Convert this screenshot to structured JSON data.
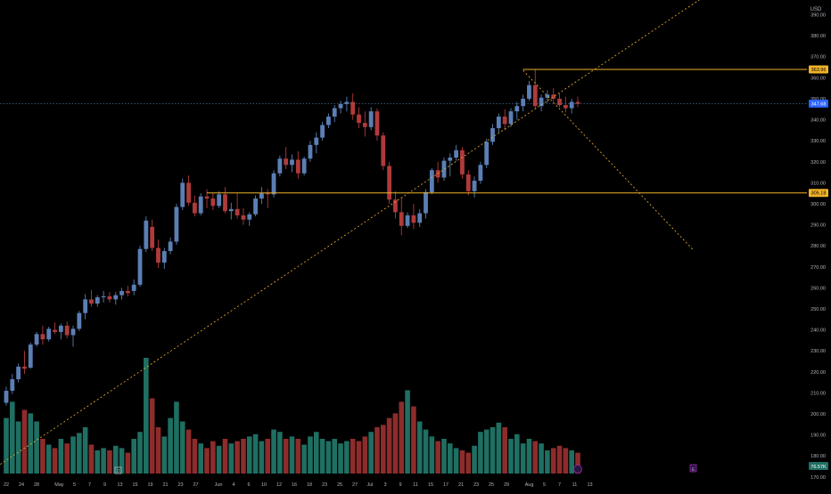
{
  "chart_data": {
    "type": "candlestick",
    "currency": "USD",
    "y_range": [
      164,
      397
    ],
    "y_ticks": [
      170,
      180,
      190,
      200,
      210,
      220,
      230,
      240,
      250,
      260,
      270,
      280,
      290,
      300,
      310,
      320,
      330,
      340,
      350,
      360,
      370,
      380,
      390
    ],
    "x_ticks": [
      {
        "label": "22",
        "i": 0
      },
      {
        "label": "24",
        "i": 2
      },
      {
        "label": "28",
        "i": 4
      },
      {
        "label": "May",
        "i": 7
      },
      {
        "label": "5",
        "i": 9
      },
      {
        "label": "7",
        "i": 11
      },
      {
        "label": "9",
        "i": 13
      },
      {
        "label": "13",
        "i": 15
      },
      {
        "label": "15",
        "i": 17
      },
      {
        "label": "19",
        "i": 19
      },
      {
        "label": "21",
        "i": 21
      },
      {
        "label": "23",
        "i": 23
      },
      {
        "label": "27",
        "i": 25
      },
      {
        "label": "Jun",
        "i": 28
      },
      {
        "label": "4",
        "i": 30
      },
      {
        "label": "6",
        "i": 32
      },
      {
        "label": "10",
        "i": 34
      },
      {
        "label": "12",
        "i": 36
      },
      {
        "label": "16",
        "i": 38
      },
      {
        "label": "18",
        "i": 40
      },
      {
        "label": "23",
        "i": 42
      },
      {
        "label": "25",
        "i": 44
      },
      {
        "label": "27",
        "i": 46
      },
      {
        "label": "Jul",
        "i": 48
      },
      {
        "label": "3",
        "i": 50
      },
      {
        "label": "9",
        "i": 52
      },
      {
        "label": "11",
        "i": 54
      },
      {
        "label": "15",
        "i": 56
      },
      {
        "label": "17",
        "i": 58
      },
      {
        "label": "21",
        "i": 60
      },
      {
        "label": "23",
        "i": 62
      },
      {
        "label": "25",
        "i": 64
      },
      {
        "label": "29",
        "i": 66
      },
      {
        "label": "Aug",
        "i": 69
      },
      {
        "label": "5",
        "i": 71
      },
      {
        "label": "7",
        "i": 73
      },
      {
        "label": "11",
        "i": 75
      },
      {
        "label": "13",
        "i": 77
      }
    ],
    "candles": [
      {
        "o": 205.3,
        "h": 213.0,
        "l": 204.0,
        "c": 211.0,
        "v": 0.48
      },
      {
        "o": 211.0,
        "h": 219.0,
        "l": 209.5,
        "c": 216.5,
        "v": 0.62
      },
      {
        "o": 216.5,
        "h": 224.0,
        "l": 215.0,
        "c": 222.5,
        "v": 0.45
      },
      {
        "o": 222.5,
        "h": 230.0,
        "l": 219.0,
        "c": 221.5,
        "v": 0.55
      },
      {
        "o": 222.0,
        "h": 234.0,
        "l": 221.5,
        "c": 233.0,
        "v": 0.52
      },
      {
        "o": 233.0,
        "h": 239.0,
        "l": 232.0,
        "c": 238.0,
        "v": 0.45
      },
      {
        "o": 238.0,
        "h": 242.0,
        "l": 233.0,
        "c": 235.5,
        "v": 0.3
      },
      {
        "o": 235.5,
        "h": 241.5,
        "l": 234.5,
        "c": 240.5,
        "v": 0.25
      },
      {
        "o": 240.0,
        "h": 243.5,
        "l": 238.0,
        "c": 239.0,
        "v": 0.22
      },
      {
        "o": 239.0,
        "h": 243.0,
        "l": 235.5,
        "c": 242.0,
        "v": 0.3
      },
      {
        "o": 242.0,
        "h": 244.0,
        "l": 236.0,
        "c": 237.5,
        "v": 0.26
      },
      {
        "o": 237.5,
        "h": 242.0,
        "l": 232.0,
        "c": 240.5,
        "v": 0.32
      },
      {
        "o": 240.5,
        "h": 249.0,
        "l": 239.5,
        "c": 248.0,
        "v": 0.35
      },
      {
        "o": 248.0,
        "h": 257.0,
        "l": 245.0,
        "c": 254.5,
        "v": 0.4
      },
      {
        "o": 254.5,
        "h": 259.0,
        "l": 251.0,
        "c": 252.5,
        "v": 0.25
      },
      {
        "o": 252.5,
        "h": 256.5,
        "l": 251.0,
        "c": 255.5,
        "v": 0.2
      },
      {
        "o": 255.5,
        "h": 258.5,
        "l": 253.0,
        "c": 256.0,
        "v": 0.22
      },
      {
        "o": 256.0,
        "h": 258.0,
        "l": 253.0,
        "c": 254.5,
        "v": 0.2
      },
      {
        "o": 254.5,
        "h": 258.0,
        "l": 252.0,
        "c": 256.5,
        "v": 0.24
      },
      {
        "o": 256.5,
        "h": 260.0,
        "l": 254.5,
        "c": 258.5,
        "v": 0.22
      },
      {
        "o": 258.5,
        "h": 261.0,
        "l": 256.0,
        "c": 257.5,
        "v": 0.18
      },
      {
        "o": 258.5,
        "h": 264.0,
        "l": 256.5,
        "c": 261.5,
        "v": 0.3
      },
      {
        "o": 261.5,
        "h": 280.0,
        "l": 260.5,
        "c": 278.5,
        "v": 0.36
      },
      {
        "o": 278.5,
        "h": 294.0,
        "l": 277.0,
        "c": 292.0,
        "v": 1.0
      },
      {
        "o": 289.0,
        "h": 292.5,
        "l": 277.5,
        "c": 279.0,
        "v": 0.65
      },
      {
        "o": 279.0,
        "h": 283.0,
        "l": 269.5,
        "c": 272.0,
        "v": 0.4
      },
      {
        "o": 272.0,
        "h": 279.0,
        "l": 269.0,
        "c": 277.5,
        "v": 0.32
      },
      {
        "o": 277.5,
        "h": 284.0,
        "l": 276.0,
        "c": 282.0,
        "v": 0.48
      },
      {
        "o": 282.0,
        "h": 300.0,
        "l": 280.5,
        "c": 298.5,
        "v": 0.62
      },
      {
        "o": 298.5,
        "h": 312.0,
        "l": 297.0,
        "c": 310.0,
        "v": 0.45
      },
      {
        "o": 310.0,
        "h": 313.5,
        "l": 299.0,
        "c": 300.5,
        "v": 0.38
      },
      {
        "o": 300.5,
        "h": 304.0,
        "l": 294.0,
        "c": 295.5,
        "v": 0.3
      },
      {
        "o": 295.5,
        "h": 305.0,
        "l": 294.5,
        "c": 303.5,
        "v": 0.26
      },
      {
        "o": 303.5,
        "h": 307.0,
        "l": 298.0,
        "c": 302.5,
        "v": 0.22
      },
      {
        "o": 302.5,
        "h": 305.0,
        "l": 297.0,
        "c": 299.0,
        "v": 0.28
      },
      {
        "o": 299.0,
        "h": 306.0,
        "l": 298.0,
        "c": 304.5,
        "v": 0.24
      },
      {
        "o": 304.5,
        "h": 308.0,
        "l": 295.5,
        "c": 296.5,
        "v": 0.3
      },
      {
        "o": 296.5,
        "h": 300.5,
        "l": 292.5,
        "c": 297.5,
        "v": 0.26
      },
      {
        "o": 297.5,
        "h": 305.0,
        "l": 293.0,
        "c": 294.5,
        "v": 0.28
      },
      {
        "o": 294.5,
        "h": 298.0,
        "l": 290.0,
        "c": 292.5,
        "v": 0.3
      },
      {
        "o": 292.5,
        "h": 296.0,
        "l": 289.5,
        "c": 295.0,
        "v": 0.32
      },
      {
        "o": 295.0,
        "h": 304.0,
        "l": 294.0,
        "c": 302.5,
        "v": 0.34
      },
      {
        "o": 302.5,
        "h": 308.0,
        "l": 300.0,
        "c": 305.0,
        "v": 0.28
      },
      {
        "o": 305.0,
        "h": 307.0,
        "l": 298.0,
        "c": 304.5,
        "v": 0.3
      },
      {
        "o": 304.5,
        "h": 316.0,
        "l": 303.0,
        "c": 314.5,
        "v": 0.38
      },
      {
        "o": 314.5,
        "h": 323.0,
        "l": 313.0,
        "c": 321.5,
        "v": 0.36
      },
      {
        "o": 321.5,
        "h": 327.0,
        "l": 316.5,
        "c": 318.5,
        "v": 0.3
      },
      {
        "o": 318.5,
        "h": 323.5,
        "l": 315.0,
        "c": 321.0,
        "v": 0.32
      },
      {
        "o": 321.0,
        "h": 325.0,
        "l": 312.0,
        "c": 314.5,
        "v": 0.3
      },
      {
        "o": 314.5,
        "h": 322.5,
        "l": 313.5,
        "c": 321.5,
        "v": 0.25
      },
      {
        "o": 321.5,
        "h": 330.0,
        "l": 320.0,
        "c": 328.0,
        "v": 0.32
      },
      {
        "o": 328.0,
        "h": 334.0,
        "l": 324.0,
        "c": 331.5,
        "v": 0.36
      },
      {
        "o": 331.5,
        "h": 339.0,
        "l": 330.0,
        "c": 337.5,
        "v": 0.3
      },
      {
        "o": 337.5,
        "h": 343.0,
        "l": 336.0,
        "c": 341.5,
        "v": 0.28
      },
      {
        "o": 341.5,
        "h": 347.0,
        "l": 339.0,
        "c": 345.5,
        "v": 0.3
      },
      {
        "o": 345.5,
        "h": 349.0,
        "l": 343.0,
        "c": 347.5,
        "v": 0.26
      },
      {
        "o": 347.5,
        "h": 351.0,
        "l": 344.0,
        "c": 348.5,
        "v": 0.28
      },
      {
        "o": 348.5,
        "h": 352.5,
        "l": 340.0,
        "c": 342.5,
        "v": 0.3
      },
      {
        "o": 342.5,
        "h": 346.0,
        "l": 336.0,
        "c": 338.5,
        "v": 0.28
      },
      {
        "o": 338.5,
        "h": 344.0,
        "l": 332.0,
        "c": 336.5,
        "v": 0.32
      },
      {
        "o": 336.5,
        "h": 346.0,
        "l": 335.0,
        "c": 344.0,
        "v": 0.36
      },
      {
        "o": 344.0,
        "h": 345.5,
        "l": 330.0,
        "c": 332.5,
        "v": 0.4
      },
      {
        "o": 332.5,
        "h": 334.0,
        "l": 316.0,
        "c": 318.0,
        "v": 0.42
      },
      {
        "o": 318.0,
        "h": 320.0,
        "l": 300.0,
        "c": 302.0,
        "v": 0.48
      },
      {
        "o": 302.0,
        "h": 306.0,
        "l": 293.0,
        "c": 296.0,
        "v": 0.52
      },
      {
        "o": 296.0,
        "h": 303.0,
        "l": 285.0,
        "c": 289.5,
        "v": 0.62
      },
      {
        "o": 289.5,
        "h": 296.0,
        "l": 288.5,
        "c": 294.5,
        "v": 0.72
      },
      {
        "o": 294.5,
        "h": 300.0,
        "l": 288.0,
        "c": 291.0,
        "v": 0.58
      },
      {
        "o": 291.0,
        "h": 297.5,
        "l": 289.0,
        "c": 295.5,
        "v": 0.45
      },
      {
        "o": 295.5,
        "h": 307.0,
        "l": 293.0,
        "c": 305.5,
        "v": 0.38
      },
      {
        "o": 305.5,
        "h": 317.0,
        "l": 304.5,
        "c": 316.0,
        "v": 0.32
      },
      {
        "o": 316.0,
        "h": 320.0,
        "l": 310.0,
        "c": 312.5,
        "v": 0.28
      },
      {
        "o": 312.5,
        "h": 322.0,
        "l": 311.0,
        "c": 320.5,
        "v": 0.3
      },
      {
        "o": 320.5,
        "h": 324.0,
        "l": 313.0,
        "c": 322.0,
        "v": 0.26
      },
      {
        "o": 322.0,
        "h": 328.0,
        "l": 320.5,
        "c": 325.5,
        "v": 0.22
      },
      {
        "o": 325.5,
        "h": 327.0,
        "l": 312.0,
        "c": 314.0,
        "v": 0.2
      },
      {
        "o": 314.0,
        "h": 316.0,
        "l": 304.0,
        "c": 306.0,
        "v": 0.18
      },
      {
        "o": 306.0,
        "h": 313.0,
        "l": 303.0,
        "c": 311.0,
        "v": 0.24
      },
      {
        "o": 311.0,
        "h": 320.0,
        "l": 309.5,
        "c": 318.5,
        "v": 0.36
      },
      {
        "o": 318.5,
        "h": 331.0,
        "l": 317.0,
        "c": 329.5,
        "v": 0.38
      },
      {
        "o": 329.5,
        "h": 338.0,
        "l": 328.0,
        "c": 336.0,
        "v": 0.4
      },
      {
        "o": 336.0,
        "h": 343.0,
        "l": 334.0,
        "c": 341.5,
        "v": 0.44
      },
      {
        "o": 341.5,
        "h": 345.0,
        "l": 335.0,
        "c": 338.0,
        "v": 0.4
      },
      {
        "o": 338.0,
        "h": 345.5,
        "l": 336.5,
        "c": 344.0,
        "v": 0.3
      },
      {
        "o": 344.0,
        "h": 348.5,
        "l": 340.0,
        "c": 346.5,
        "v": 0.34
      },
      {
        "o": 346.5,
        "h": 352.0,
        "l": 344.0,
        "c": 350.0,
        "v": 0.26
      },
      {
        "o": 350.0,
        "h": 358.5,
        "l": 349.0,
        "c": 356.5,
        "v": 0.3
      },
      {
        "o": 356.5,
        "h": 363.9,
        "l": 345.0,
        "c": 346.5,
        "v": 0.28
      },
      {
        "o": 346.5,
        "h": 352.0,
        "l": 344.0,
        "c": 350.5,
        "v": 0.26
      },
      {
        "o": 350.5,
        "h": 354.0,
        "l": 348.0,
        "c": 352.0,
        "v": 0.2
      },
      {
        "o": 352.0,
        "h": 355.0,
        "l": 348.5,
        "c": 350.0,
        "v": 0.22
      },
      {
        "o": 350.0,
        "h": 352.5,
        "l": 346.0,
        "c": 347.0,
        "v": 0.24
      },
      {
        "o": 347.0,
        "h": 351.0,
        "l": 343.5,
        "c": 345.5,
        "v": 0.22
      },
      {
        "o": 345.5,
        "h": 350.0,
        "l": 343.0,
        "c": 348.5,
        "v": 0.2
      },
      {
        "o": 348.5,
        "h": 351.0,
        "l": 346.0,
        "c": 347.6,
        "v": 0.18
      }
    ],
    "levels": [
      {
        "value": 363.96,
        "label": "363.96",
        "from_i": 85
      },
      {
        "value": 305.18,
        "label": "305.18",
        "from_i": 33
      }
    ],
    "current_price": {
      "value": 347.68,
      "label": "347.68"
    },
    "volume_label": "76.57K",
    "trendlines": [
      {
        "x1": -1,
        "y1": 176,
        "x2": 115,
        "y2": 399
      },
      {
        "x1": 85,
        "y1": 363.5,
        "x2": 113,
        "y2": 278
      }
    ]
  },
  "markers": {
    "dividend_marker": "D",
    "earnings_marker": "E"
  }
}
